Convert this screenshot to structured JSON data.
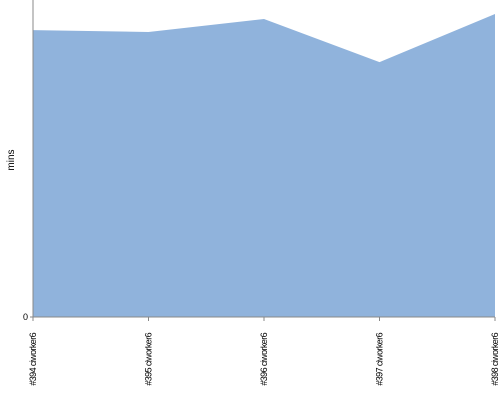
{
  "chart_data": {
    "type": "area",
    "y_label": "mins",
    "categories": [
      "#394 ciworker6",
      "#395 ciworker6",
      "#396 ciworker6",
      "#397 ciworker6",
      "#398 ciworker6"
    ],
    "values": [
      0.905,
      0.899,
      0.94,
      0.804,
      0.956
    ],
    "color": "#90b3dc",
    "ylim": [
      0,
      1
    ],
    "yticks": [
      0
    ]
  }
}
